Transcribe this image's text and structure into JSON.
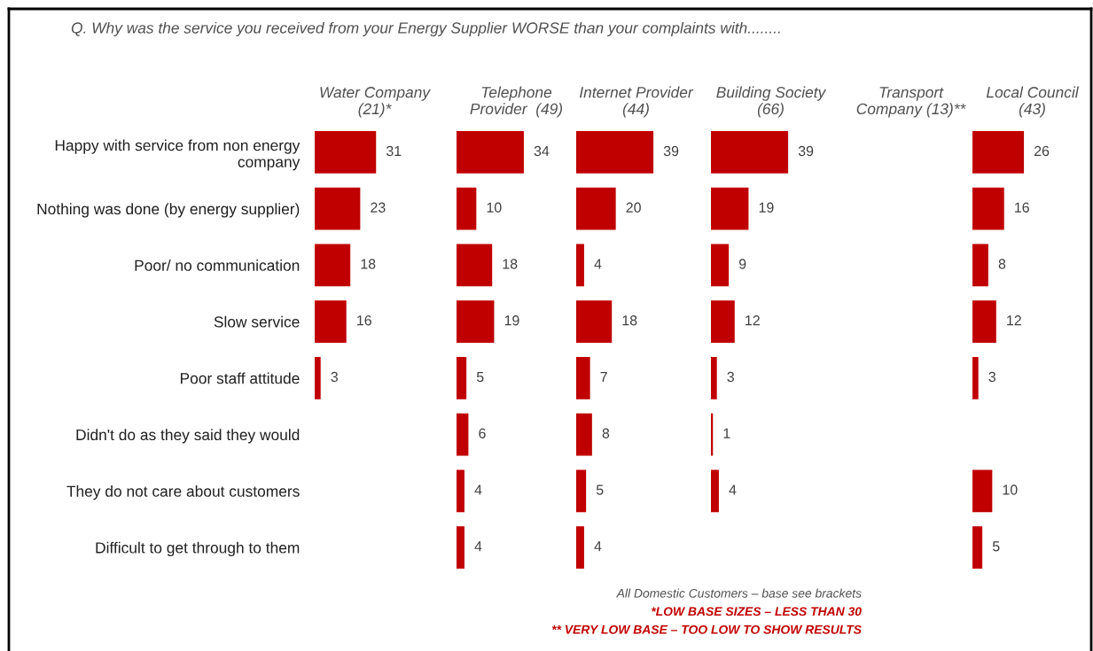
{
  "chart_data": [
    {
      "type": "bar",
      "orientation": "horizontal",
      "title": "Water Company\n(21)*",
      "data_labels": true,
      "tick_labels": "y",
      "color": "#c00000",
      "categories": [
        "Happy with service from non energy\ncompany",
        "Nothing was done (by energy supplier)",
        "Poor/ no communication",
        "Slow service",
        "Poor staff attitude",
        "Didn't do as they said they would",
        "They do not care about customers",
        "Difficult to get through to them"
      ],
      "values": [
        31,
        23,
        18,
        16,
        3,
        null,
        null,
        null
      ],
      "annotations": [
        "Q. Why was the service you received from your Energy Supplier WORSE than your complaints with........",
        "All Domestic Customers – base see brackets",
        "*LOW BASE SIZES – LESS THAN 30",
        "** VERY LOW BASE – TOO LOW TO SHOW RESULTS"
      ]
    },
    {
      "type": "bar",
      "orientation": "horizontal",
      "title": "Telephone\nProvider  (49)",
      "data_labels": true,
      "tick_labels": false,
      "color": "#c00000",
      "values": [
        34,
        10,
        18,
        19,
        5,
        6,
        4,
        4
      ]
    },
    {
      "type": "bar",
      "orientation": "horizontal",
      "title": "Internet Provider\n(44)",
      "data_labels": true,
      "tick_labels": false,
      "color": "#c00000",
      "values": [
        39,
        20,
        4,
        18,
        7,
        8,
        5,
        4
      ]
    },
    {
      "type": "bar",
      "orientation": "horizontal",
      "title": "Building Society\n(66)",
      "data_labels": true,
      "tick_labels": false,
      "color": "#c00000",
      "values": [
        39,
        19,
        9,
        12,
        3,
        1,
        4,
        null
      ]
    },
    {
      "type": "other",
      "title": "Transport\nCompany (13)**"
    },
    {
      "type": "bar",
      "orientation": "horizontal",
      "title": "Local Council\n(43)",
      "data_labels": true,
      "tick_labels": false,
      "color": "#c00000",
      "values": [
        26,
        16,
        8,
        12,
        3,
        null,
        10,
        5
      ]
    }
  ]
}
